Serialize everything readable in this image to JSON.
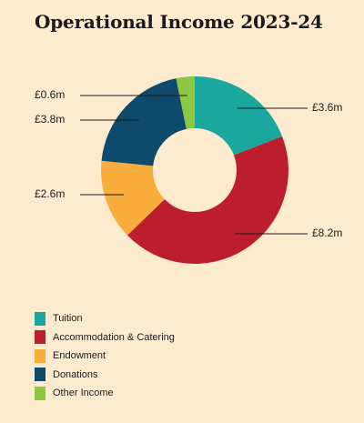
{
  "title": "Operational Income 2023-24",
  "chart_data": {
    "type": "pie",
    "title": "Operational Income 2023-24",
    "unit": "£m",
    "categories": [
      "Tuition",
      "Accommodation & Catering",
      "Endowment",
      "Donations",
      "Other Income"
    ],
    "values": [
      3.6,
      8.2,
      2.6,
      3.8,
      0.6
    ],
    "labels": [
      "£3.6m",
      "£8.2m",
      "£2.6m",
      "£3.8m",
      "£0.6m"
    ],
    "colors": [
      "#1aa89e",
      "#bd1e2d",
      "#f9ad3c",
      "#0d4a6b",
      "#8dc63f"
    ],
    "legend_position": "bottom-left"
  }
}
